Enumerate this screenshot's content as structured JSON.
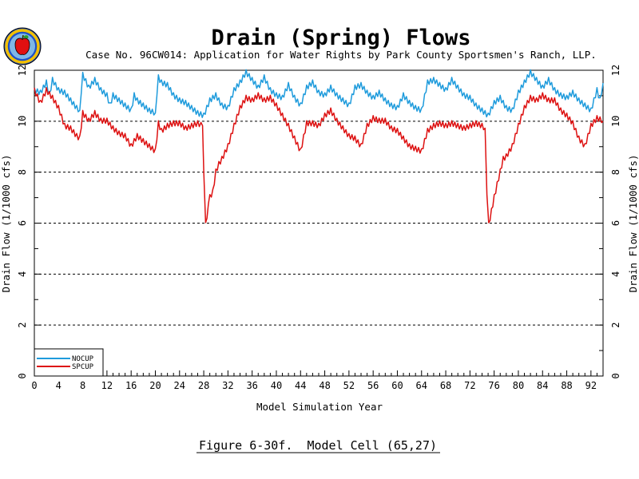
{
  "logo": {
    "name": "apple-seal-logo"
  },
  "caption": "Figure 6-30f.  Model Cell (65,27)",
  "chart_data": {
    "type": "line",
    "title": "Drain (Spring) Flows",
    "subtitle": "Case No. 96CW014: Application for Water Rights by Park County Sportsmen's Ranch, LLP.",
    "xlabel": "Model Simulation Year",
    "ylabel": "Drain Flow  (1/1000 cfs)",
    "ylabel_right": "Drain Flow  (1/1000 cfs)",
    "xlim": [
      0,
      94
    ],
    "ylim": [
      0,
      12
    ],
    "xticks": [
      0,
      4,
      8,
      12,
      16,
      20,
      24,
      28,
      32,
      36,
      40,
      44,
      48,
      52,
      56,
      60,
      64,
      68,
      72,
      76,
      80,
      84,
      88,
      92
    ],
    "xtick_labels": [
      "0",
      "4",
      "8",
      "12",
      "16",
      "20",
      "24",
      "28",
      "32",
      "36",
      "40",
      "44",
      "48",
      "52",
      "56",
      "60",
      "64",
      "68",
      "72",
      "76",
      "80",
      "84",
      "88",
      "92"
    ],
    "yticks": [
      0,
      2,
      4,
      6,
      8,
      10,
      12
    ],
    "ytick_labels": [
      "0",
      "2",
      "4",
      "6",
      "8",
      "10",
      "12"
    ],
    "grid_y": [
      2,
      4,
      6,
      8,
      10
    ],
    "grid_style": "dashed",
    "legend_position": "bottom-left",
    "series": [
      {
        "name": "NOCUP",
        "color": "#1e9bdc",
        "x": [
          0,
          1,
          2,
          2.5,
          3,
          4,
          5,
          6,
          7,
          7.5,
          8,
          9,
          10,
          11,
          12,
          12.5,
          13,
          14,
          15,
          16,
          16.5,
          17,
          18,
          19,
          20,
          20.5,
          21,
          22,
          23,
          24,
          25,
          26,
          27,
          28,
          29,
          30,
          31,
          32,
          33,
          34,
          35,
          36,
          37,
          38,
          39,
          40,
          41,
          42,
          43,
          44,
          45,
          46,
          47,
          48,
          49,
          50,
          51,
          52,
          53,
          54,
          55,
          56,
          57,
          58,
          59,
          60,
          61,
          62,
          63,
          64,
          65,
          66,
          67,
          68,
          69,
          70,
          71,
          72,
          73,
          74,
          75,
          76,
          77,
          78,
          79,
          80,
          81,
          82,
          83,
          84,
          85,
          86,
          87,
          88,
          89,
          90,
          91,
          92,
          93,
          93.5,
          94
        ],
        "y": [
          11.2,
          11.1,
          11.5,
          11.0,
          11.6,
          11.2,
          11.1,
          10.8,
          10.5,
          10.4,
          11.8,
          11.3,
          11.6,
          11.2,
          11.0,
          10.6,
          11.0,
          10.8,
          10.6,
          10.4,
          11.0,
          10.8,
          10.6,
          10.4,
          10.3,
          11.7,
          11.5,
          11.4,
          11.0,
          10.8,
          10.7,
          10.5,
          10.3,
          10.2,
          10.8,
          11.0,
          10.6,
          10.5,
          11.2,
          11.5,
          11.9,
          11.6,
          11.3,
          11.7,
          11.2,
          11.0,
          10.9,
          11.4,
          10.9,
          10.6,
          11.3,
          11.5,
          11.1,
          11.0,
          11.3,
          11.0,
          10.8,
          10.6,
          11.3,
          11.4,
          11.1,
          10.9,
          11.1,
          10.8,
          10.6,
          10.5,
          11.0,
          10.7,
          10.5,
          10.4,
          11.5,
          11.6,
          11.4,
          11.2,
          11.6,
          11.3,
          11.0,
          10.9,
          10.6,
          10.4,
          10.2,
          10.7,
          10.9,
          10.5,
          10.4,
          11.1,
          11.5,
          11.9,
          11.6,
          11.3,
          11.6,
          11.2,
          11.0,
          10.9,
          11.1,
          10.8,
          10.6,
          10.4,
          11.2,
          10.8,
          11.5
        ]
      },
      {
        "name": "SPCUP",
        "color": "#dd1111",
        "x": [
          0,
          1,
          2,
          3,
          4,
          5,
          6,
          7,
          7.5,
          8,
          9,
          10,
          11,
          12,
          13,
          14,
          15,
          16,
          17,
          18,
          19,
          20,
          20.5,
          21,
          22,
          23,
          24,
          25,
          26,
          27,
          27.8,
          28.0,
          28.3,
          29,
          29.5,
          30,
          30.5,
          31,
          32,
          33,
          34,
          35,
          36,
          37,
          38,
          39,
          40,
          41,
          42,
          43,
          44,
          45,
          46,
          47,
          48,
          49,
          50,
          51,
          52,
          53,
          54,
          55,
          56,
          57,
          58,
          59,
          60,
          61,
          62,
          63,
          64,
          65,
          66,
          67,
          68,
          69,
          70,
          71,
          72,
          73,
          74,
          74.5,
          74.8,
          75.1,
          76,
          76.5,
          77,
          77.5,
          78,
          79,
          80,
          81,
          82,
          83,
          84,
          85,
          86,
          87,
          88,
          89,
          90,
          91,
          92,
          93,
          94
        ],
        "y": [
          11.2,
          10.7,
          11.2,
          10.9,
          10.5,
          9.8,
          9.7,
          9.4,
          9.3,
          10.3,
          10.0,
          10.3,
          10.0,
          10.0,
          9.7,
          9.5,
          9.4,
          9.0,
          9.4,
          9.2,
          9.0,
          8.8,
          9.9,
          9.6,
          9.8,
          9.9,
          9.9,
          9.7,
          9.8,
          9.9,
          9.8,
          8.0,
          5.9,
          7.0,
          7.2,
          8.0,
          8.3,
          8.5,
          9.0,
          9.8,
          10.5,
          10.9,
          10.8,
          11.0,
          10.8,
          10.9,
          10.6,
          10.2,
          9.8,
          9.3,
          8.8,
          9.9,
          9.9,
          9.8,
          10.2,
          10.4,
          10.0,
          9.7,
          9.4,
          9.3,
          9.0,
          9.8,
          10.1,
          10.0,
          10.0,
          9.7,
          9.6,
          9.3,
          9.0,
          8.9,
          8.8,
          9.6,
          9.8,
          9.9,
          9.8,
          9.9,
          9.8,
          9.7,
          9.8,
          9.9,
          9.8,
          9.7,
          7.0,
          5.9,
          7.0,
          7.5,
          8.0,
          8.5,
          8.6,
          9.0,
          9.8,
          10.5,
          10.9,
          10.8,
          11.0,
          10.8,
          10.8,
          10.4,
          10.2,
          9.9,
          9.3,
          9.0,
          9.8,
          10.1,
          10.0
        ]
      }
    ]
  }
}
